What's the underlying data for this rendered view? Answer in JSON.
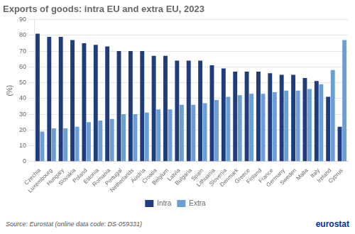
{
  "chart_data": {
    "type": "bar",
    "title": "Exports of goods: intra EU and extra EU, 2023",
    "ylabel": "(%)",
    "annotations": [
      "Source:  Eurostat (online data code: DS-059331)",
      "eurostat"
    ],
    "categories": [
      "Czechia",
      "Luxembourg",
      "Hungary",
      "Slovakia",
      "Poland",
      "Estonia",
      "Romania",
      "Portugal",
      "Netherlands",
      "Austria",
      "Croatia",
      "Belgium",
      "Latvia",
      "Bulgaria",
      "Spain",
      "Lithuania",
      "Slovenia",
      "Denmark",
      "Greece",
      "Finland",
      "France",
      "Germany",
      "Sweden",
      "Malta",
      "Italy",
      "Ireland",
      "Cyprus"
    ],
    "series": [
      {
        "name": "Intra",
        "color": "#1f3d7a",
        "values": [
          81,
          79,
          79,
          77,
          75,
          74,
          73,
          70,
          70,
          70,
          67,
          67,
          64,
          64,
          64,
          61,
          59,
          57,
          57,
          57,
          56,
          55,
          55,
          53,
          51,
          41,
          22
        ]
      },
      {
        "name": "Extra",
        "color": "#6b9fd4",
        "values": [
          19,
          21,
          21,
          22,
          25,
          26,
          27,
          30,
          30,
          31,
          33,
          33,
          36,
          36,
          37,
          39,
          41,
          42,
          43,
          43,
          44,
          45,
          45,
          46,
          49,
          58,
          77
        ]
      }
    ],
    "ylim": [
      0,
      90
    ],
    "yticks": [
      0,
      10,
      20,
      30,
      40,
      50,
      60,
      70,
      80,
      90
    ],
    "grid": true,
    "legend": "bottom"
  }
}
